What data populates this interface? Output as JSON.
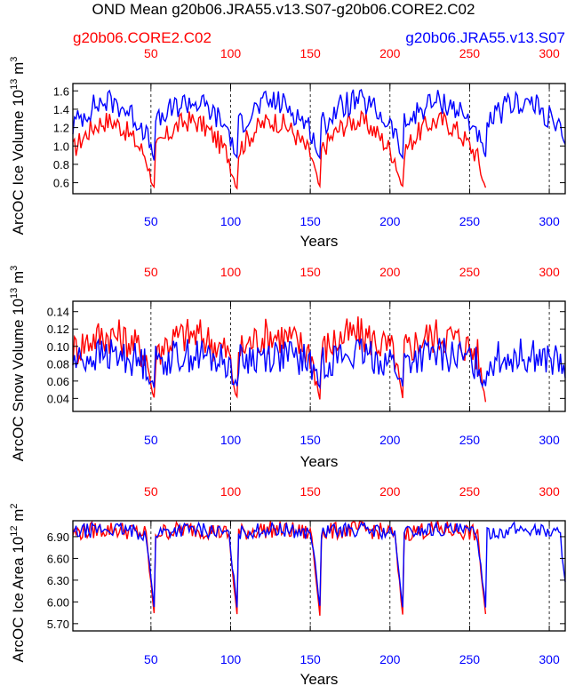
{
  "title": "OND Mean g20b06.JRA55.v13.S07-g20b06.CORE2.C02",
  "legend": {
    "red": "g20b06.CORE2.C02",
    "blue": "g20b06.JRA55.v13.S07"
  },
  "colors": {
    "red": "#ff0000",
    "blue": "#0000ff"
  },
  "chart_data": [
    {
      "type": "line",
      "title": "",
      "ylabel_main": "ArcOC Ice Volume 10",
      "ylabel_exp": "13",
      "ylabel_unit": " m",
      "ylabel_unit_exp": "3",
      "xlabel": "Years",
      "xlim": [
        1,
        310
      ],
      "ylim": [
        0.48,
        1.68
      ],
      "yticks": [
        "0.6",
        "0.8",
        "1.0",
        "1.2",
        "1.4",
        "1.6"
      ],
      "ytick_values": [
        0.6,
        0.8,
        1.0,
        1.2,
        1.4,
        1.6
      ],
      "xticks": [
        "50",
        "100",
        "150",
        "200",
        "250",
        "300"
      ],
      "xtick_values": [
        50,
        100,
        150,
        200,
        250,
        300
      ],
      "series": [
        {
          "name": "g20b06.CORE2.C02",
          "color": "#ff0000",
          "x_end": 260,
          "base": 0.95,
          "amp": 0.32,
          "noise": 0.12,
          "min_at_end": 0.5
        },
        {
          "name": "g20b06.JRA55.v13.S07",
          "color": "#0000ff",
          "x_end": 310,
          "base": 1.22,
          "amp": 0.26,
          "noise": 0.14,
          "min_at_end": 0.82
        }
      ]
    },
    {
      "type": "line",
      "ylabel_main": "ArcOC Snow Volume 10",
      "ylabel_exp": "13",
      "ylabel_unit": " m",
      "ylabel_unit_exp": "3",
      "xlabel": "Years",
      "xlim": [
        1,
        310
      ],
      "ylim": [
        0.025,
        0.152
      ],
      "yticks": [
        "0.04",
        "0.06",
        "0.08",
        "0.10",
        "0.12",
        "0.14"
      ],
      "ytick_values": [
        0.04,
        0.06,
        0.08,
        0.1,
        0.12,
        0.14
      ],
      "xticks": [
        "50",
        "100",
        "150",
        "200",
        "250",
        "300"
      ],
      "xtick_values": [
        50,
        100,
        150,
        200,
        250,
        300
      ],
      "series": [
        {
          "name": "g20b06.CORE2.C02",
          "color": "#ff0000",
          "x_end": 260,
          "base": 0.095,
          "amp": 0.018,
          "noise": 0.022,
          "min_at_end": 0.03
        },
        {
          "name": "g20b06.JRA55.v13.S07",
          "color": "#0000ff",
          "x_end": 310,
          "base": 0.082,
          "amp": 0.008,
          "noise": 0.02,
          "min_at_end": 0.05
        }
      ]
    },
    {
      "type": "line",
      "ylabel_main": "ArcOC Ice Area 10",
      "ylabel_exp": "12",
      "ylabel_unit": " m",
      "ylabel_unit_exp": "2",
      "xlabel": "Years",
      "xlim": [
        1,
        310
      ],
      "ylim": [
        5.6,
        7.12
      ],
      "yticks": [
        "5.70",
        "6.00",
        "6.30",
        "6.60",
        "6.90"
      ],
      "ytick_values": [
        5.7,
        6.0,
        6.3,
        6.6,
        6.9
      ],
      "xticks": [
        "50",
        "100",
        "150",
        "200",
        "250",
        "300"
      ],
      "xtick_values": [
        50,
        100,
        150,
        200,
        250,
        300
      ],
      "series": [
        {
          "name": "g20b06.CORE2.C02",
          "color": "#ff0000",
          "x_end": 260,
          "base": 6.95,
          "amp": 0.05,
          "noise": 0.12,
          "min_at_end": 5.62
        },
        {
          "name": "g20b06.JRA55.v13.S07",
          "color": "#0000ff",
          "x_end": 310,
          "base": 6.95,
          "amp": 0.05,
          "noise": 0.1,
          "min_at_end": 5.75
        }
      ]
    }
  ]
}
